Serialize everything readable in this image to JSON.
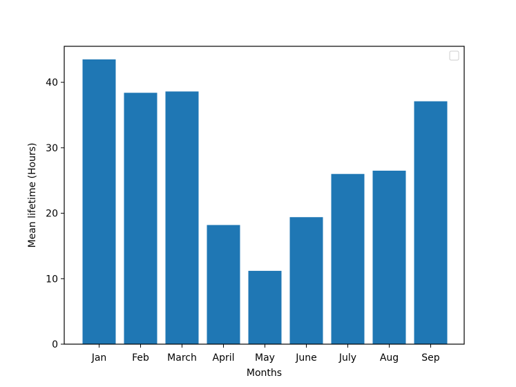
{
  "chart_data": {
    "type": "bar",
    "categories": [
      "Jan",
      "Feb",
      "March",
      "April",
      "May",
      "June",
      "July",
      "Aug",
      "Sep"
    ],
    "values": [
      43.5,
      38.4,
      38.6,
      18.2,
      11.2,
      19.4,
      26.0,
      26.5,
      37.1
    ],
    "xlabel": "Months",
    "ylabel": "Mean lifetime (Hours)",
    "ylim": [
      0,
      45.5
    ],
    "yticks": [
      0,
      10,
      20,
      30,
      40
    ],
    "bar_color": "#1f77b4",
    "grid": false,
    "legend": {
      "placement": "top-right",
      "entries": []
    }
  }
}
